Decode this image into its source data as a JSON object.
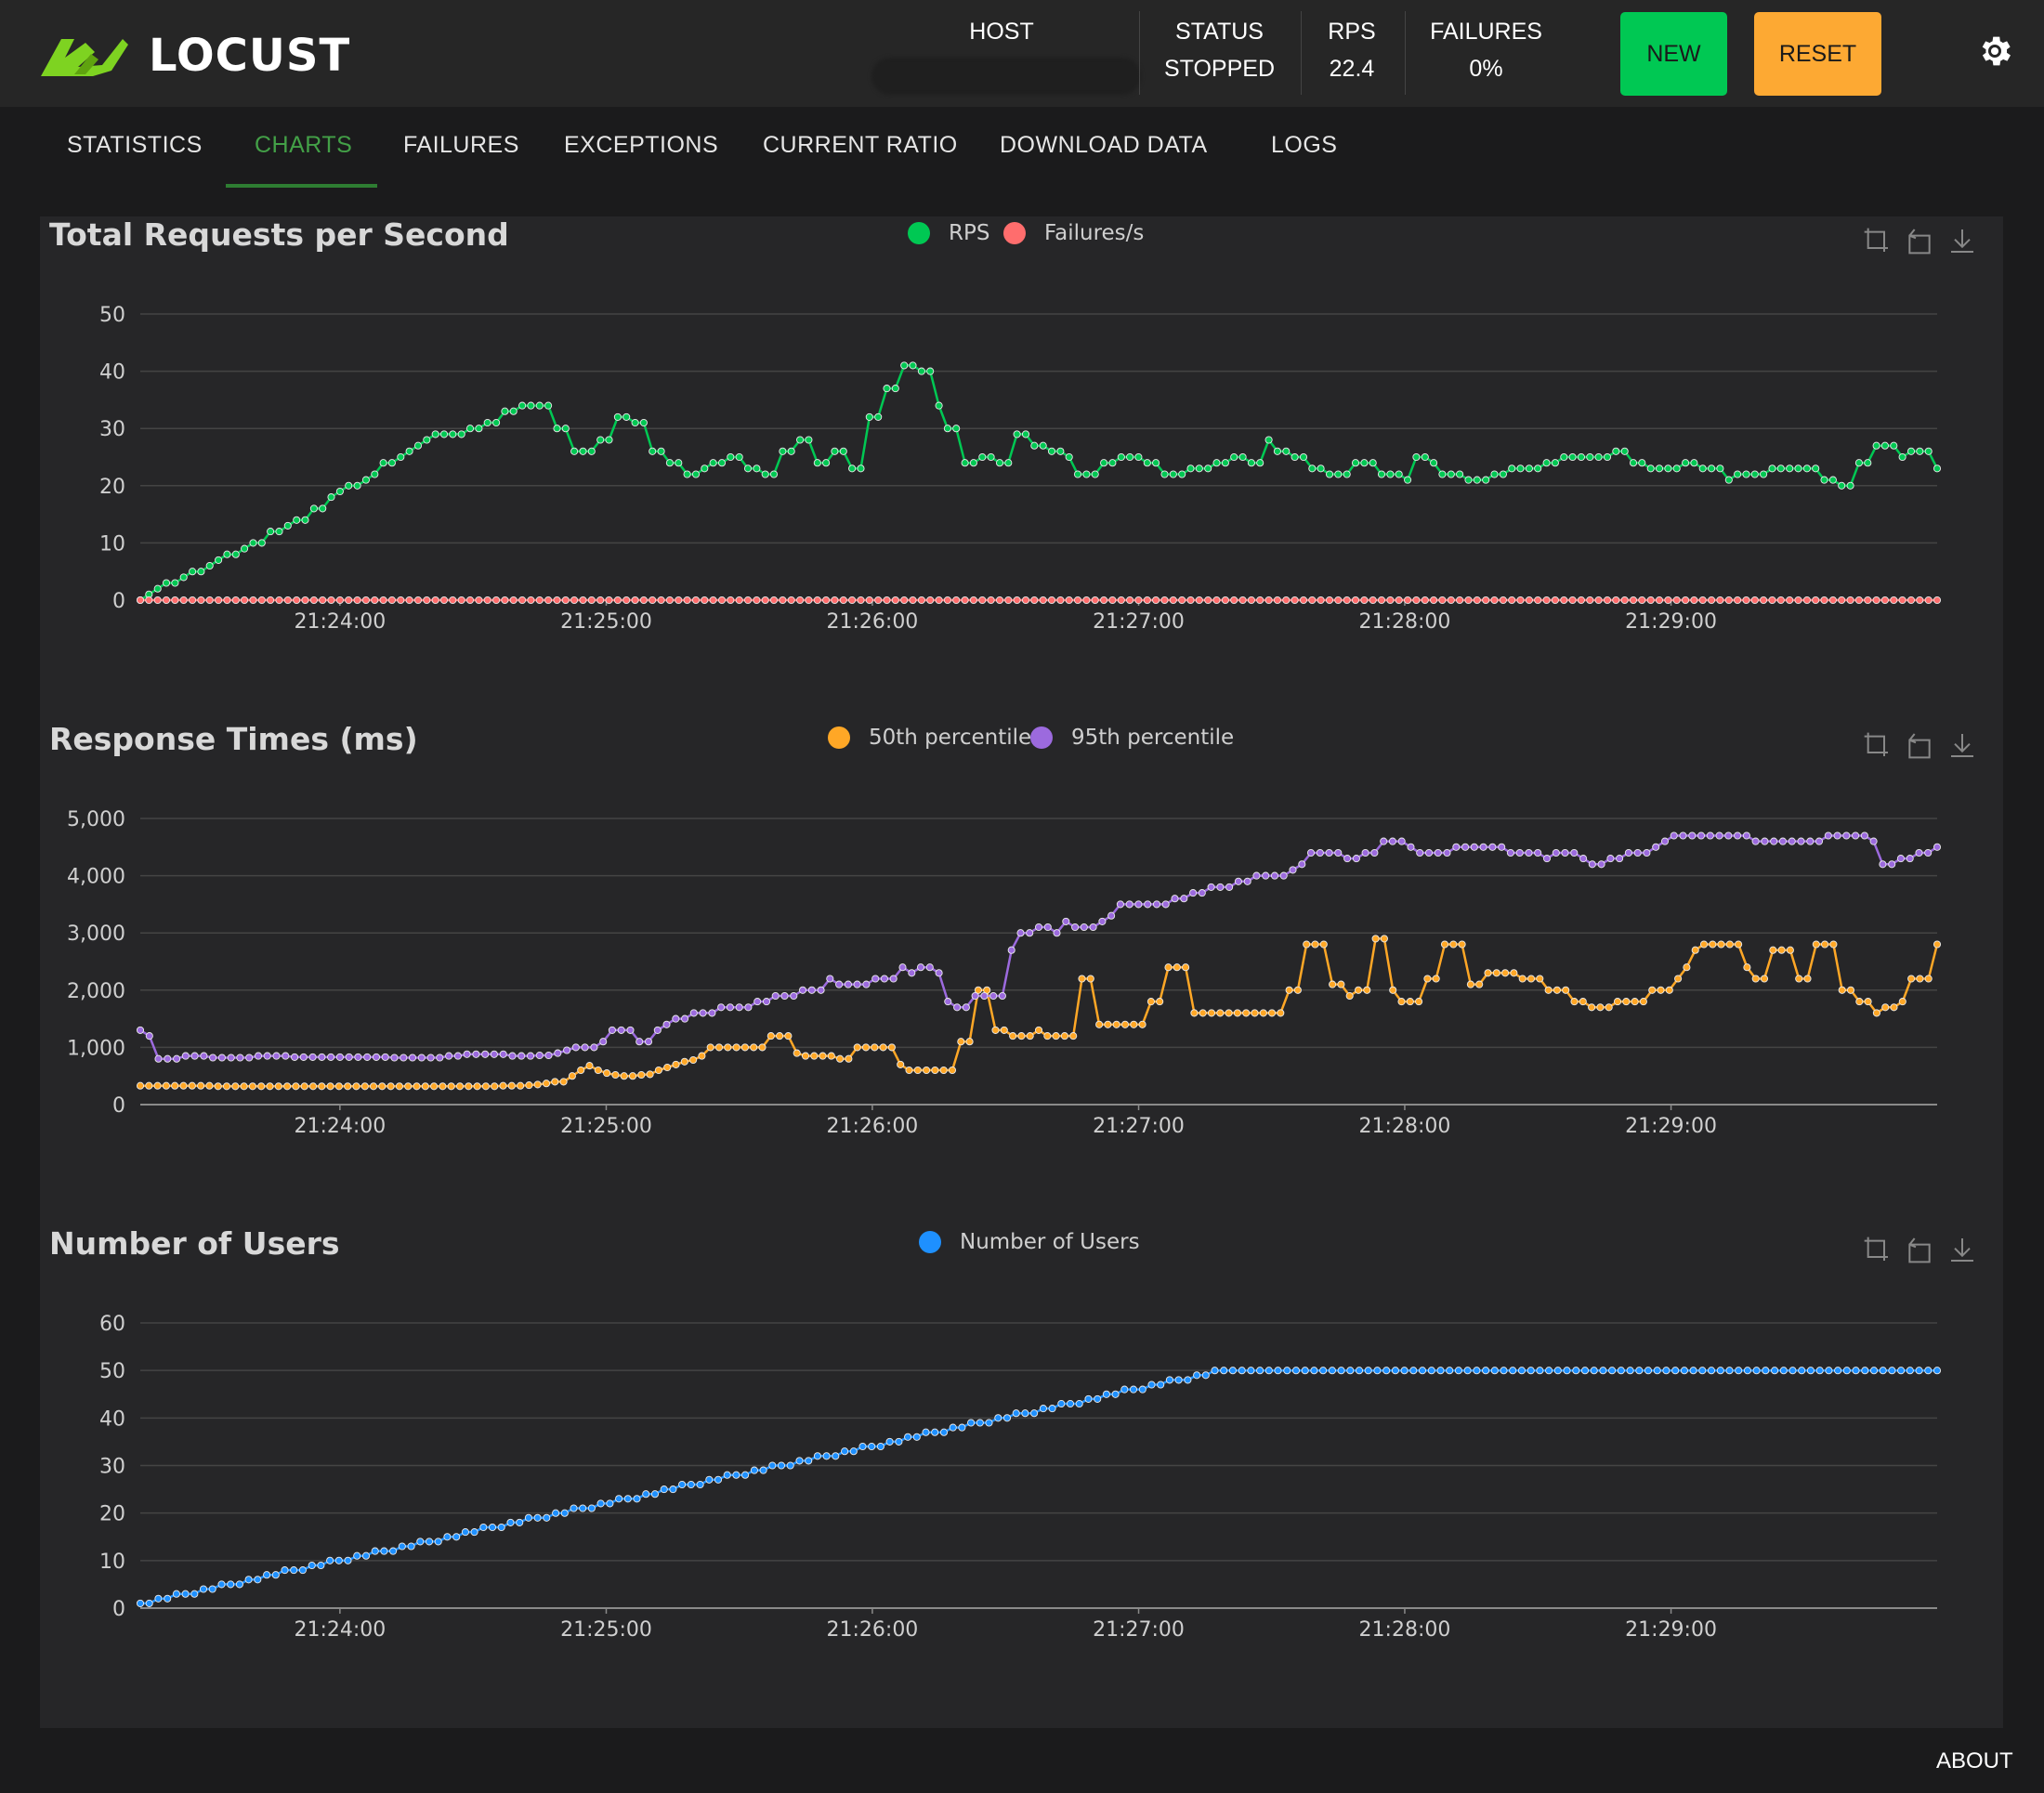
{
  "app": {
    "name": "LOCUST"
  },
  "header": {
    "host_label": "HOST",
    "status_label": "STATUS",
    "status_value": "STOPPED",
    "rps_label": "RPS",
    "rps_value": "22.4",
    "failures_label": "FAILURES",
    "failures_value": "0%",
    "new_label": "NEW",
    "reset_label": "RESET"
  },
  "tabs": [
    {
      "label": "STATISTICS",
      "active": false
    },
    {
      "label": "CHARTS",
      "active": true
    },
    {
      "label": "FAILURES",
      "active": false
    },
    {
      "label": "EXCEPTIONS",
      "active": false
    },
    {
      "label": "CURRENT RATIO",
      "active": false
    },
    {
      "label": "DOWNLOAD DATA",
      "active": false
    },
    {
      "label": "LOGS",
      "active": false
    }
  ],
  "footer": {
    "about": "ABOUT"
  },
  "colors": {
    "rps": "#00c853",
    "failures": "#ff6d6d",
    "p50": "#ffa726",
    "p95": "#9c6ade",
    "users": "#1e90ff",
    "new_button": "#00c853",
    "reset_button": "#fda933",
    "active_tab": "#43a047"
  },
  "chart_data": [
    {
      "type": "line",
      "title": "Total Requests per Second",
      "x_ticks": [
        "21:24:00",
        "21:25:00",
        "21:26:00",
        "21:27:00",
        "21:28:00",
        "21:29:00"
      ],
      "y_ticks": [
        "0",
        "10",
        "20",
        "30",
        "40",
        "50"
      ],
      "ylim": [
        0,
        50
      ],
      "legend_position": "top-center",
      "series": [
        {
          "name": "RPS",
          "color": "#00c853",
          "values": [
            0,
            1,
            2,
            3,
            3,
            4,
            5,
            5,
            6,
            7,
            8,
            8,
            9,
            10,
            10,
            12,
            12,
            13,
            14,
            14,
            16,
            16,
            18,
            19,
            20,
            20,
            21,
            22,
            24,
            24,
            25,
            26,
            27,
            28,
            29,
            29,
            29,
            29,
            30,
            30,
            31,
            31,
            33,
            33,
            34,
            34,
            34,
            34,
            30,
            30,
            26,
            26,
            26,
            28,
            28,
            32,
            32,
            31,
            31,
            26,
            26,
            24,
            24,
            22,
            22,
            23,
            24,
            24,
            25,
            25,
            23,
            23,
            22,
            22,
            26,
            26,
            28,
            28,
            24,
            24,
            26,
            26,
            23,
            23,
            32,
            32,
            37,
            37,
            41,
            41,
            40,
            40,
            34,
            30,
            30,
            24,
            24,
            25,
            25,
            24,
            24,
            29,
            29,
            27,
            27,
            26,
            26,
            25,
            22,
            22,
            22,
            24,
            24,
            25,
            25,
            25,
            24,
            24,
            22,
            22,
            22,
            23,
            23,
            23,
            24,
            24,
            25,
            25,
            24,
            24,
            28,
            26,
            26,
            25,
            25,
            23,
            23,
            22,
            22,
            22,
            24,
            24,
            24,
            22,
            22,
            22,
            21,
            25,
            25,
            24,
            22,
            22,
            22,
            21,
            21,
            21,
            22,
            22,
            23,
            23,
            23,
            23,
            24,
            24,
            25,
            25,
            25,
            25,
            25,
            25,
            26,
            26,
            24,
            24,
            23,
            23,
            23,
            23,
            24,
            24,
            23,
            23,
            23,
            21,
            22,
            22,
            22,
            22,
            23,
            23,
            23,
            23,
            23,
            23,
            21,
            21,
            20,
            20,
            24,
            24,
            27,
            27,
            27,
            25,
            26,
            26,
            26,
            23
          ]
        },
        {
          "name": "Failures/s",
          "color": "#ff6d6d",
          "values": [
            0,
            0,
            0,
            0,
            0,
            0,
            0,
            0,
            0,
            0,
            0,
            0,
            0,
            0,
            0,
            0,
            0,
            0,
            0,
            0,
            0,
            0,
            0,
            0,
            0,
            0,
            0,
            0,
            0,
            0,
            0,
            0,
            0,
            0,
            0,
            0,
            0,
            0,
            0,
            0,
            0,
            0,
            0,
            0,
            0,
            0,
            0,
            0,
            0,
            0,
            0,
            0,
            0,
            0,
            0,
            0,
            0,
            0,
            0,
            0,
            0,
            0,
            0,
            0,
            0,
            0,
            0,
            0,
            0,
            0,
            0,
            0,
            0,
            0,
            0,
            0,
            0,
            0,
            0,
            0,
            0,
            0,
            0,
            0,
            0,
            0,
            0,
            0,
            0,
            0,
            0,
            0,
            0,
            0,
            0,
            0,
            0,
            0,
            0,
            0,
            0,
            0,
            0,
            0,
            0,
            0,
            0,
            0,
            0,
            0,
            0,
            0,
            0,
            0,
            0,
            0,
            0,
            0,
            0,
            0,
            0,
            0,
            0,
            0,
            0,
            0,
            0,
            0,
            0,
            0,
            0,
            0,
            0,
            0,
            0,
            0,
            0,
            0,
            0,
            0,
            0,
            0,
            0,
            0,
            0,
            0,
            0,
            0,
            0,
            0,
            0,
            0,
            0,
            0,
            0,
            0,
            0,
            0,
            0,
            0,
            0,
            0,
            0,
            0,
            0,
            0,
            0,
            0,
            0,
            0,
            0,
            0,
            0,
            0,
            0,
            0,
            0,
            0,
            0,
            0,
            0,
            0,
            0,
            0,
            0,
            0,
            0,
            0,
            0,
            0,
            0,
            0,
            0,
            0,
            0,
            0,
            0,
            0,
            0,
            0,
            0,
            0,
            0,
            0,
            0,
            0,
            0,
            0
          ]
        }
      ]
    },
    {
      "type": "line",
      "title": "Response Times (ms)",
      "x_ticks": [
        "21:24:00",
        "21:25:00",
        "21:26:00",
        "21:27:00",
        "21:28:00",
        "21:29:00"
      ],
      "y_ticks": [
        "0",
        "1,000",
        "2,000",
        "3,000",
        "4,000",
        "5,000"
      ],
      "ylim": [
        0,
        5000
      ],
      "legend_position": "top-center",
      "series": [
        {
          "name": "50th percentile",
          "color": "#ffa726",
          "values": [
            330,
            330,
            330,
            330,
            330,
            330,
            330,
            330,
            330,
            320,
            320,
            320,
            320,
            320,
            320,
            320,
            320,
            320,
            320,
            320,
            320,
            320,
            320,
            320,
            320,
            320,
            320,
            320,
            320,
            320,
            320,
            320,
            320,
            320,
            320,
            320,
            320,
            320,
            320,
            320,
            320,
            320,
            330,
            330,
            330,
            340,
            350,
            370,
            400,
            400,
            500,
            600,
            680,
            600,
            550,
            520,
            500,
            500,
            520,
            530,
            600,
            650,
            700,
            750,
            780,
            850,
            1000,
            1000,
            1000,
            1000,
            1000,
            1000,
            1000,
            1200,
            1200,
            1200,
            900,
            850,
            850,
            850,
            850,
            800,
            800,
            1000,
            1000,
            1000,
            1000,
            1000,
            700,
            600,
            600,
            600,
            600,
            600,
            600,
            1100,
            1100,
            2000,
            2000,
            1300,
            1300,
            1200,
            1200,
            1200,
            1300,
            1200,
            1200,
            1200,
            1200,
            2200,
            2200,
            1400,
            1400,
            1400,
            1400,
            1400,
            1400,
            1800,
            1800,
            2400,
            2400,
            2400,
            1600,
            1600,
            1600,
            1600,
            1600,
            1600,
            1600,
            1600,
            1600,
            1600,
            1600,
            2000,
            2000,
            2800,
            2800,
            2800,
            2100,
            2100,
            1900,
            2000,
            2000,
            2900,
            2900,
            2000,
            1800,
            1800,
            1800,
            2200,
            2200,
            2800,
            2800,
            2800,
            2100,
            2100,
            2300,
            2300,
            2300,
            2300,
            2200,
            2200,
            2200,
            2000,
            2000,
            2000,
            1800,
            1800,
            1700,
            1700,
            1700,
            1800,
            1800,
            1800,
            1800,
            2000,
            2000,
            2000,
            2200,
            2400,
            2700,
            2800,
            2800,
            2800,
            2800,
            2800,
            2400,
            2200,
            2200,
            2700,
            2700,
            2700,
            2200,
            2200,
            2800,
            2800,
            2800,
            2000,
            2000,
            1800,
            1800,
            1600,
            1700,
            1700,
            1800,
            2200,
            2200,
            2200,
            2800
          ]
        },
        {
          "name": "95th percentile",
          "color": "#9c6ade",
          "values": [
            1300,
            1200,
            800,
            800,
            800,
            850,
            850,
            850,
            820,
            820,
            820,
            820,
            820,
            850,
            850,
            850,
            850,
            830,
            830,
            830,
            830,
            830,
            830,
            830,
            830,
            830,
            830,
            830,
            820,
            820,
            820,
            820,
            820,
            820,
            850,
            850,
            880,
            880,
            880,
            880,
            880,
            850,
            850,
            850,
            860,
            860,
            900,
            950,
            1000,
            1000,
            1000,
            1100,
            1300,
            1300,
            1300,
            1100,
            1100,
            1300,
            1400,
            1500,
            1500,
            1600,
            1600,
            1600,
            1700,
            1700,
            1700,
            1700,
            1800,
            1800,
            1900,
            1900,
            1900,
            2000,
            2000,
            2000,
            2200,
            2100,
            2100,
            2100,
            2100,
            2200,
            2200,
            2200,
            2400,
            2300,
            2400,
            2400,
            2300,
            1800,
            1700,
            1700,
            1900,
            1900,
            1900,
            1900,
            2700,
            3000,
            3000,
            3100,
            3100,
            3000,
            3200,
            3100,
            3100,
            3100,
            3200,
            3300,
            3500,
            3500,
            3500,
            3500,
            3500,
            3500,
            3600,
            3600,
            3700,
            3700,
            3800,
            3800,
            3800,
            3900,
            3900,
            4000,
            4000,
            4000,
            4000,
            4100,
            4200,
            4400,
            4400,
            4400,
            4400,
            4300,
            4300,
            4400,
            4400,
            4600,
            4600,
            4600,
            4500,
            4400,
            4400,
            4400,
            4400,
            4500,
            4500,
            4500,
            4500,
            4500,
            4500,
            4400,
            4400,
            4400,
            4400,
            4300,
            4400,
            4400,
            4400,
            4300,
            4200,
            4200,
            4300,
            4300,
            4400,
            4400,
            4400,
            4500,
            4600,
            4700,
            4700,
            4700,
            4700,
            4700,
            4700,
            4700,
            4700,
            4700,
            4600,
            4600,
            4600,
            4600,
            4600,
            4600,
            4600,
            4600,
            4700,
            4700,
            4700,
            4700,
            4700,
            4600,
            4200,
            4200,
            4300,
            4300,
            4400,
            4400,
            4500
          ]
        }
      ]
    },
    {
      "type": "line",
      "title": "Number of Users",
      "x_ticks": [
        "21:24:00",
        "21:25:00",
        "21:26:00",
        "21:27:00",
        "21:28:00",
        "21:29:00"
      ],
      "y_ticks": [
        "0",
        "10",
        "20",
        "30",
        "40",
        "50",
        "60"
      ],
      "ylim": [
        0,
        60
      ],
      "legend_position": "top-center",
      "series": [
        {
          "name": "Number of Users",
          "color": "#1e90ff",
          "ramp_to": 50,
          "ramp_fraction": 0.6,
          "points": 200
        }
      ]
    }
  ]
}
